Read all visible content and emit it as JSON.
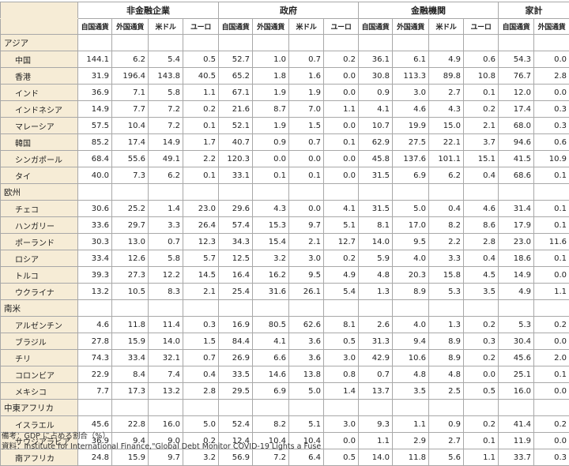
{
  "groups": [
    "非金融企業",
    "政府",
    "金融機関",
    "家計"
  ],
  "subheaders": [
    "自国通貨",
    "外国通貨",
    "米ドル",
    "ユーロ",
    "自国通貨",
    "外国通貨",
    "米ドル",
    "ユーロ",
    "自国通貨",
    "外国通貨",
    "米ドル",
    "ユーロ",
    "自国通貨",
    "外国通貨"
  ],
  "regions": [
    {
      "name": "アジア",
      "rows": [
        {
          "country": "中国",
          "values": [
            "144.1",
            "6.2",
            "5.4",
            "0.5",
            "52.7",
            "1.0",
            "0.7",
            "0.2",
            "36.1",
            "6.1",
            "4.9",
            "0.6",
            "54.3",
            "0.0"
          ]
        },
        {
          "country": "香港",
          "values": [
            "31.9",
            "196.4",
            "143.8",
            "40.5",
            "65.2",
            "1.8",
            "1.6",
            "0.0",
            "30.8",
            "113.3",
            "89.8",
            "10.8",
            "76.7",
            "2.8"
          ]
        },
        {
          "country": "インド",
          "values": [
            "36.9",
            "7.1",
            "5.8",
            "1.1",
            "67.1",
            "1.9",
            "1.9",
            "0.0",
            "0.9",
            "3.0",
            "2.7",
            "0.1",
            "12.0",
            "0.0"
          ]
        },
        {
          "country": "インドネシア",
          "values": [
            "14.9",
            "7.7",
            "7.2",
            "0.2",
            "21.6",
            "8.7",
            "7.0",
            "1.1",
            "4.1",
            "4.6",
            "4.3",
            "0.2",
            "17.4",
            "0.3"
          ]
        },
        {
          "country": "マレーシア",
          "values": [
            "57.5",
            "10.4",
            "7.2",
            "0.1",
            "52.1",
            "1.9",
            "1.5",
            "0.0",
            "10.7",
            "19.9",
            "15.0",
            "2.1",
            "68.0",
            "0.3"
          ]
        },
        {
          "country": "韓国",
          "values": [
            "85.2",
            "17.4",
            "14.9",
            "1.7",
            "40.7",
            "0.9",
            "0.7",
            "0.1",
            "62.9",
            "27.5",
            "22.1",
            "3.7",
            "94.6",
            "0.6"
          ]
        },
        {
          "country": "シンガポール",
          "values": [
            "68.4",
            "55.6",
            "49.1",
            "2.2",
            "120.3",
            "0.0",
            "0.0",
            "0.0",
            "45.8",
            "137.6",
            "101.1",
            "15.1",
            "41.5",
            "10.9"
          ]
        },
        {
          "country": "タイ",
          "values": [
            "40.0",
            "7.3",
            "6.2",
            "0.1",
            "33.1",
            "0.1",
            "0.1",
            "0.0",
            "31.5",
            "6.9",
            "6.2",
            "0.4",
            "68.6",
            "0.1"
          ]
        }
      ]
    },
    {
      "name": "欧州",
      "rows": [
        {
          "country": "チェコ",
          "values": [
            "30.6",
            "25.2",
            "1.4",
            "23.0",
            "29.6",
            "4.3",
            "0.0",
            "4.1",
            "31.5",
            "5.0",
            "0.4",
            "4.6",
            "31.4",
            "0.1"
          ]
        },
        {
          "country": "ハンガリー",
          "values": [
            "33.6",
            "29.7",
            "3.3",
            "26.4",
            "57.4",
            "15.3",
            "9.7",
            "5.1",
            "8.1",
            "17.0",
            "8.2",
            "8.6",
            "17.9",
            "0.1"
          ]
        },
        {
          "country": "ポーランド",
          "values": [
            "30.3",
            "13.0",
            "0.7",
            "12.3",
            "34.3",
            "15.4",
            "2.1",
            "12.7",
            "14.0",
            "9.5",
            "2.2",
            "2.8",
            "23.0",
            "11.6"
          ]
        },
        {
          "country": "ロシア",
          "values": [
            "33.4",
            "12.6",
            "5.8",
            "5.7",
            "12.5",
            "3.2",
            "3.0",
            "0.2",
            "5.9",
            "4.0",
            "3.3",
            "0.4",
            "18.6",
            "0.1"
          ]
        },
        {
          "country": "トルコ",
          "values": [
            "39.3",
            "27.3",
            "12.2",
            "14.5",
            "16.4",
            "16.2",
            "9.5",
            "4.9",
            "4.8",
            "20.3",
            "15.8",
            "4.5",
            "14.9",
            "0.0"
          ]
        },
        {
          "country": "ウクライナ",
          "values": [
            "13.2",
            "10.5",
            "8.3",
            "2.1",
            "25.4",
            "31.6",
            "26.1",
            "5.4",
            "1.3",
            "8.9",
            "5.3",
            "3.5",
            "4.9",
            "1.1"
          ]
        }
      ]
    },
    {
      "name": "南米",
      "rows": [
        {
          "country": "アルゼンチン",
          "values": [
            "4.6",
            "11.8",
            "11.4",
            "0.3",
            "16.9",
            "80.5",
            "62.6",
            "8.1",
            "2.6",
            "4.0",
            "1.3",
            "0.2",
            "5.3",
            "0.2"
          ]
        },
        {
          "country": "ブラジル",
          "values": [
            "27.8",
            "15.9",
            "14.0",
            "1.5",
            "84.4",
            "4.1",
            "3.6",
            "0.5",
            "31.3",
            "9.4",
            "8.9",
            "0.3",
            "30.4",
            "0.0"
          ]
        },
        {
          "country": "チリ",
          "values": [
            "74.3",
            "33.4",
            "32.1",
            "0.7",
            "26.9",
            "6.6",
            "3.6",
            "3.0",
            "42.9",
            "10.6",
            "8.9",
            "0.2",
            "45.6",
            "2.0"
          ]
        },
        {
          "country": "コロンビア",
          "values": [
            "22.9",
            "8.4",
            "7.4",
            "0.4",
            "33.5",
            "14.6",
            "13.8",
            "0.8",
            "0.7",
            "4.8",
            "4.8",
            "0.0",
            "25.1",
            "0.1"
          ]
        },
        {
          "country": "メキシコ",
          "values": [
            "7.7",
            "17.3",
            "13.2",
            "2.8",
            "29.5",
            "6.9",
            "5.0",
            "1.4",
            "13.7",
            "3.5",
            "2.5",
            "0.5",
            "16.0",
            "0.0"
          ]
        }
      ]
    },
    {
      "name": "中東アフリカ",
      "rows": [
        {
          "country": "イスラエル",
          "values": [
            "45.6",
            "22.8",
            "16.0",
            "5.0",
            "52.4",
            "8.2",
            "5.1",
            "3.0",
            "9.3",
            "1.1",
            "0.9",
            "0.2",
            "41.4",
            "0.2"
          ]
        },
        {
          "country": "サウジアラビア",
          "values": [
            "36.9",
            "9.4",
            "9.0",
            "0.2",
            "12.4",
            "10.4",
            "10.4",
            "0.0",
            "1.1",
            "2.9",
            "2.7",
            "0.1",
            "11.9",
            "0.0"
          ]
        },
        {
          "country": "南アフリカ",
          "values": [
            "24.8",
            "15.9",
            "9.7",
            "3.2",
            "56.9",
            "7.2",
            "6.4",
            "0.5",
            "14.0",
            "11.8",
            "5.6",
            "1.1",
            "33.7",
            "0.3"
          ]
        }
      ]
    }
  ],
  "notes": {
    "note1": "備考：GDP に占める割合（%）",
    "note2": "資料：Institute for International Finance,\"Global Debt Monitor COVID-19 Lights a Fuse"
  }
}
